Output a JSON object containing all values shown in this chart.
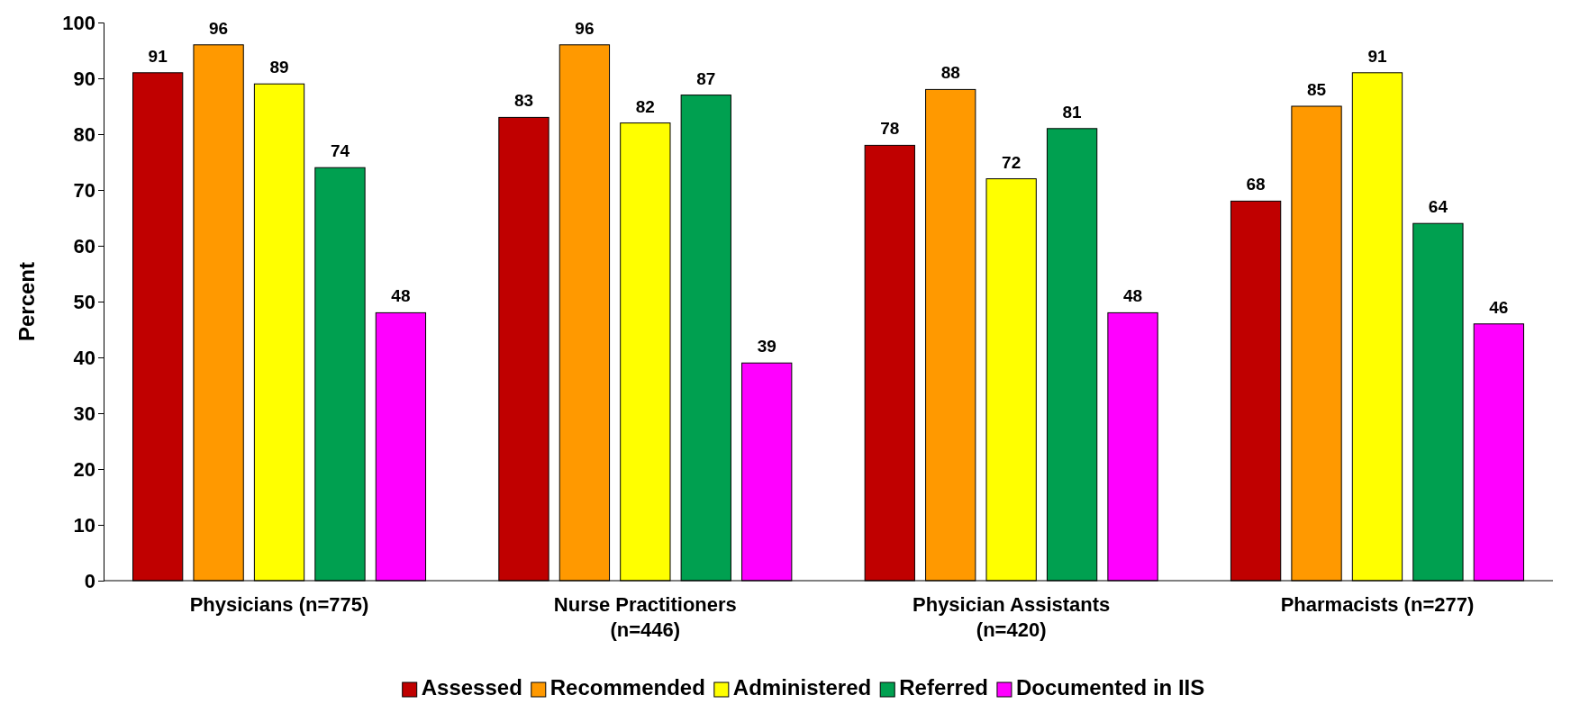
{
  "chart_data": {
    "type": "bar",
    "ylabel": "Percent",
    "categories": [
      "Physicians (n=775)",
      "Nurse Practitioners (n=446)",
      "Physician Assistants (n=420)",
      "Pharmacists (n=277)"
    ],
    "series": [
      {
        "name": "Assessed",
        "color": "#c00000",
        "values": [
          91,
          83,
          78,
          68
        ]
      },
      {
        "name": "Recommended",
        "color": "#ff9900",
        "values": [
          96,
          96,
          88,
          85
        ]
      },
      {
        "name": "Administered",
        "color": "#ffff00",
        "values": [
          89,
          82,
          72,
          91
        ]
      },
      {
        "name": "Referred",
        "color": "#00a050",
        "values": [
          74,
          87,
          81,
          64
        ]
      },
      {
        "name": "Documented in IIS",
        "color": "#ff00ff",
        "values": [
          48,
          39,
          48,
          46
        ]
      }
    ],
    "ylim": [
      0,
      100
    ],
    "yticks": [
      0,
      10,
      20,
      30,
      40,
      50,
      60,
      70,
      80,
      90,
      100
    ],
    "data_labels": true,
    "legend": "bottom",
    "grid": false
  }
}
